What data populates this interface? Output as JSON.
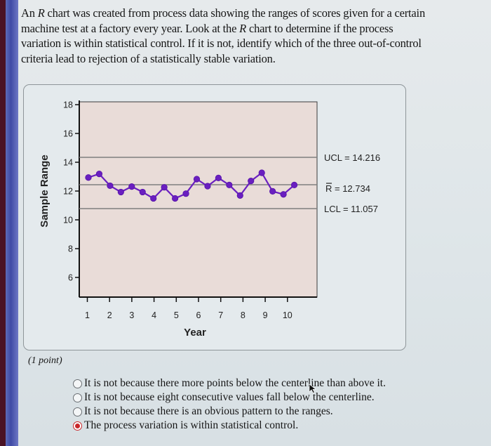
{
  "question": {
    "line1_pre": "An ",
    "line1_italic": "R",
    "line1_post": " chart was created from process data showing the ranges of scores given for a certain",
    "line2_pre": "machine test at a factory every year. Look at the ",
    "line2_italic": "R",
    "line2_post": " chart to determine if the process",
    "line3": "variation is within statistical control. If it is not, identify which of the three out-of-control",
    "line4": "criteria lead to rejection of a statistically stable variation."
  },
  "chart_data": {
    "type": "line",
    "title": "",
    "xlabel": "Year",
    "ylabel": "Sample Range",
    "x_ticks": [
      1,
      2,
      3,
      4,
      5,
      6,
      7,
      8,
      9,
      10
    ],
    "y_ticks": [
      6,
      8,
      10,
      12,
      14,
      16,
      18
    ],
    "xlim": [
      0.5,
      10.5
    ],
    "ylim": [
      4.8,
      18.6
    ],
    "grid": false,
    "legend": "none",
    "series": [
      {
        "name": "Sample Range",
        "color": "#6a1fc0",
        "x": [
          1.0,
          1.5,
          2.0,
          2.5,
          3.0,
          3.5,
          4.0,
          4.5,
          5.0,
          5.5,
          6.0,
          6.5,
          7.0,
          7.5,
          8.0,
          8.5,
          9.0,
          9.5,
          10.0,
          10.5
        ],
        "values": [
          12.94,
          13.19,
          12.37,
          11.93,
          12.31,
          11.93,
          11.49,
          12.26,
          11.49,
          11.82,
          12.83,
          12.34,
          12.91,
          12.42,
          11.69,
          12.7,
          13.27,
          11.98,
          11.77,
          12.42
        ]
      }
    ],
    "control_lines": [
      {
        "name": "UCL",
        "label": "UCL  =  14.216",
        "value": 14.216
      },
      {
        "name": "R-bar",
        "label": "R  =  12.734",
        "value": 12.734
      },
      {
        "name": "LCL",
        "label": "LCL  =  11.057",
        "value": 11.057
      }
    ],
    "annotations": [
      "UCL = 14.216",
      "R̄ = 12.734",
      "LCL = 11.057"
    ]
  },
  "points_label": "(1 point)",
  "options": [
    {
      "label": "It is not because there more points below the centerline than above it.",
      "selected": false
    },
    {
      "label": "It is not because eight consecutive values fall below the centerline.",
      "selected": false
    },
    {
      "label": "It is not because there is an obvious pattern to the ranges.",
      "selected": false
    },
    {
      "label": "The process variation is within statistical control.",
      "selected": true
    }
  ],
  "colors": {
    "plot_bg": "#e9dcd8",
    "line": "#6a1fc0",
    "control_line": "#7f7f7f",
    "selected_radio": "#c8262a"
  }
}
